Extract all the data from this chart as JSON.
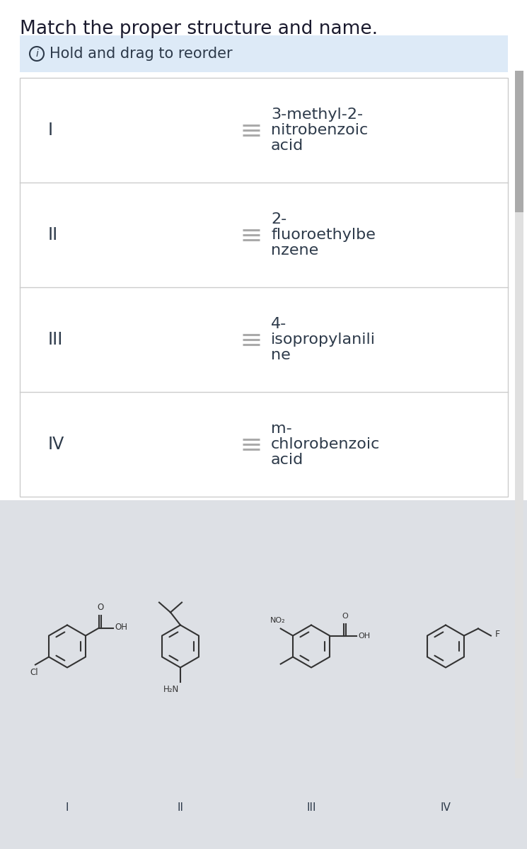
{
  "title": "Match the proper structure and name.",
  "title_fontsize": 19,
  "title_color": "#1a1a2e",
  "bg_color": "#ffffff",
  "header_bg": "#ddeaf7",
  "header_text": "Hold and drag to reorder",
  "header_fontsize": 15,
  "table_bg": "#ffffff",
  "table_border": "#cccccc",
  "bottom_bg": "#dde0e5",
  "roman_numerals": [
    "I",
    "II",
    "III",
    "IV"
  ],
  "names": [
    "3-methyl-2-\nnitrobenzoic\nacid",
    "2-\nfluoroethylbe\nnzene",
    "4-\nisopropylanili\nne",
    "m-\nchlorobenzoic\nacid"
  ],
  "roman_color": "#2d3a4a",
  "name_color": "#2d3a4a",
  "roman_fontsize": 17,
  "name_fontsize": 16,
  "struct_color": "#333333",
  "struct_lw": 1.5,
  "struct_labels": [
    "I",
    "II",
    "III",
    "IV"
  ],
  "label_fontsize": 11
}
